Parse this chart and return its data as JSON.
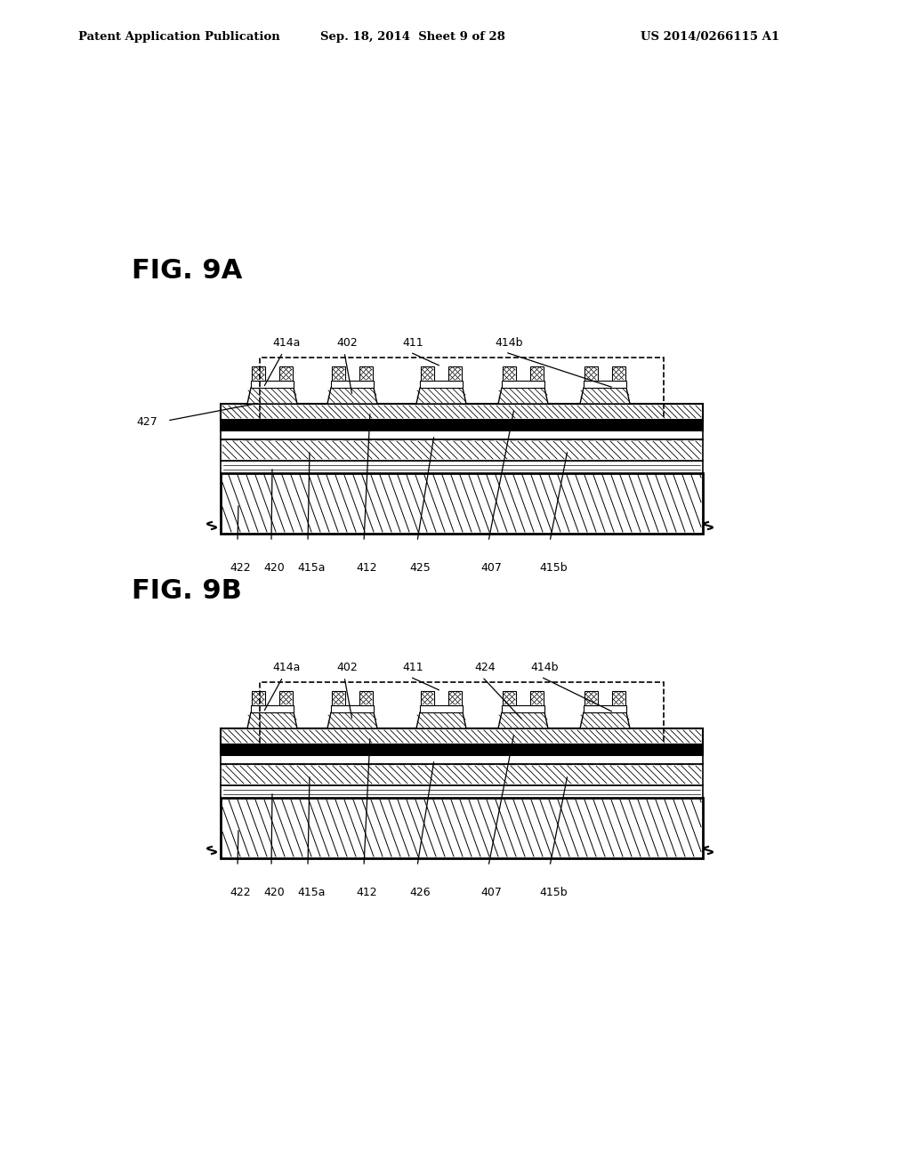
{
  "background_color": "#ffffff",
  "fig_width": 10.24,
  "fig_height": 13.2,
  "header_text": "Patent Application Publication",
  "header_date": "Sep. 18, 2014  Sheet 9 of 28",
  "header_patent": "US 2014/0266115 A1",
  "fig9a_label": "FIG. 9A",
  "fig9b_label": "FIG. 9B"
}
